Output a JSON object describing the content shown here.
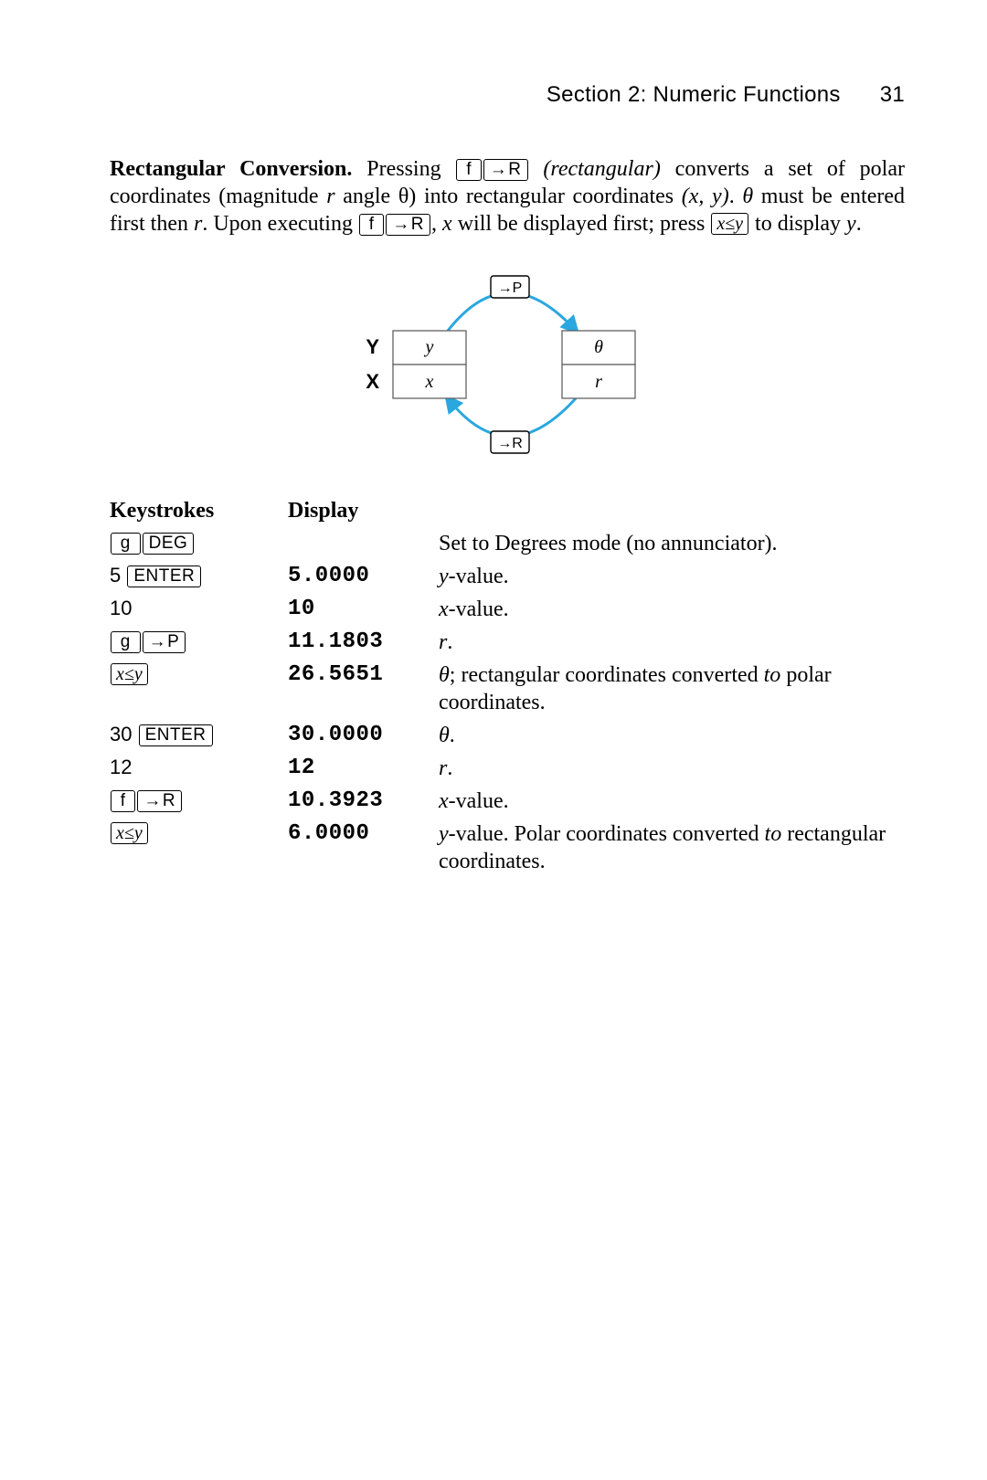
{
  "header": {
    "section": "Section 2: Numeric Functions",
    "page": "31"
  },
  "para": {
    "lead": "Rectangular Conversion.",
    "t1": " Pressing ",
    "key_f": "f",
    "key_toR": "R",
    "rect_ital": "(rectangular)",
    "t2": " converts a set of polar coordinates (magnitude ",
    "var_r1": "r",
    "t3": " angle θ) into rectangular coordinates ",
    "xy_ital": "(x, y)",
    "t4": ". ",
    "var_theta": "θ",
    "t5": " must be entered first then ",
    "var_r2": "r",
    "t6": ". Upon executing ",
    "t7": ", ",
    "var_x": "x",
    "t8": " will be displayed first; press ",
    "key_xswap": "x≤y",
    "t9": " to display ",
    "var_y": "y",
    "t10": "."
  },
  "diagram": {
    "label_Y": "Y",
    "label_X": "X",
    "cell_y": "y",
    "cell_x": "x",
    "cell_theta": "θ",
    "cell_r": "r",
    "key_toP": "P",
    "key_toR": "R",
    "colors": {
      "arrow": "#2aa7df",
      "box_border": "#555555",
      "text": "#000000",
      "key_border": "#000000",
      "bg": "#ffffff"
    },
    "stroke_width": 3
  },
  "table": {
    "headers": {
      "ks": "Keystrokes",
      "disp": "Display"
    },
    "rows": [
      {
        "ks_html": "<span class='key tight'>&nbsp;g&nbsp;</span><span class='key'>DEG</span>",
        "disp": "",
        "desc": "Set to Degrees mode (no annunciator)."
      },
      {
        "ks_html": "5 <span class='key'>ENTER</span>",
        "disp": "5.0000",
        "desc": "<span class='ital'>y</span>-value."
      },
      {
        "ks_html": "10",
        "disp": "10",
        "desc": "<span class='ital'>x</span>-value."
      },
      {
        "ks_html": "<span class='key tight'>&nbsp;g&nbsp;</span><span class='key'><span class='arrow-r'></span>P</span>",
        "disp": "11.1803",
        "desc": "<span class='ital'>r</span>."
      },
      {
        "ks_html": "<span class='key math'>x&#8203;≤&#8203;y</span>",
        "disp": "26.5651",
        "desc": "<span class='ital'>θ</span>; rectangular coordinates converted <span class='ital'>to</span> polar coordinates."
      },
      {
        "ks_html": "30 <span class='key'>ENTER</span>",
        "disp": "30.0000",
        "desc": "<span class='ital'>θ</span>."
      },
      {
        "ks_html": "12",
        "disp": "12",
        "desc": "<span class='ital'>r</span>."
      },
      {
        "ks_html": "<span class='key tight'>&nbsp;f&nbsp;</span><span class='key'><span class='arrow-r'></span>R</span>",
        "disp": "10.3923",
        "desc": "<span class='ital'>x</span>-value."
      },
      {
        "ks_html": "<span class='key math'>x&#8203;≤&#8203;y</span>",
        "disp": "6.0000",
        "desc": "<span class='ital'>y</span>-value. Polar coordinates converted <span class='ital'>to</span> rectangular coordinates."
      }
    ]
  }
}
